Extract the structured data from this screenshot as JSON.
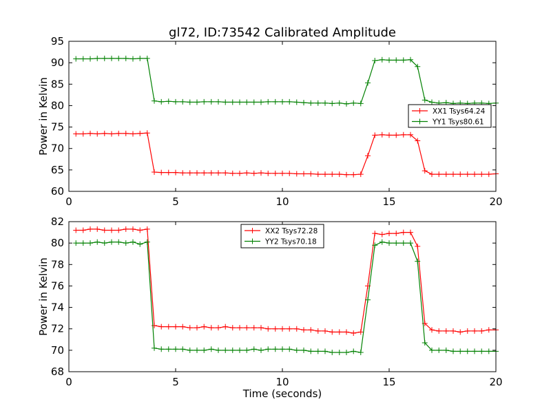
{
  "chart_data": {
    "type": "line",
    "title": "gl72, ID:73542 Calibrated Amplitude",
    "panels": [
      {
        "ylabel": "Power in Kelvin",
        "xlabel": "",
        "xlim": [
          0,
          20
        ],
        "ylim": [
          60,
          95
        ],
        "xticks": [
          0,
          5,
          10,
          15,
          20
        ],
        "yticks": [
          60,
          65,
          70,
          75,
          80,
          85,
          90,
          95
        ],
        "legend_position": "right",
        "series": [
          {
            "name": "XX1 Tsys64.24",
            "color": "#ff0000",
            "x": [
              0.33,
              0.67,
              1.0,
              1.33,
              1.67,
              2.0,
              2.33,
              2.67,
              3.0,
              3.33,
              3.67,
              4.0,
              4.33,
              4.67,
              5.0,
              5.33,
              5.67,
              6.0,
              6.33,
              6.67,
              7.0,
              7.33,
              7.67,
              8.0,
              8.33,
              8.67,
              9.0,
              9.33,
              9.67,
              10.0,
              10.33,
              10.67,
              11.0,
              11.33,
              11.67,
              12.0,
              12.33,
              12.67,
              13.0,
              13.33,
              13.67,
              14.0,
              14.33,
              14.67,
              15.0,
              15.33,
              15.67,
              16.0,
              16.33,
              16.67,
              17.0,
              17.33,
              17.67,
              18.0,
              18.33,
              18.67,
              19.0,
              19.33,
              19.67,
              20.0
            ],
            "y": [
              73.4,
              73.4,
              73.5,
              73.4,
              73.5,
              73.4,
              73.5,
              73.5,
              73.4,
              73.5,
              73.6,
              64.5,
              64.4,
              64.4,
              64.4,
              64.3,
              64.3,
              64.3,
              64.3,
              64.3,
              64.3,
              64.3,
              64.2,
              64.2,
              64.3,
              64.2,
              64.3,
              64.2,
              64.2,
              64.2,
              64.2,
              64.1,
              64.1,
              64.1,
              64.0,
              64.0,
              64.0,
              64.0,
              63.9,
              63.9,
              64.0,
              68.3,
              73.1,
              73.2,
              73.1,
              73.1,
              73.2,
              73.2,
              71.8,
              64.8,
              64.0,
              64.0,
              64.0,
              64.0,
              64.0,
              64.0,
              64.0,
              64.0,
              64.0,
              64.1
            ]
          },
          {
            "name": "YY1 Tsys80.61",
            "color": "#008000",
            "x": [
              0.33,
              0.67,
              1.0,
              1.33,
              1.67,
              2.0,
              2.33,
              2.67,
              3.0,
              3.33,
              3.67,
              4.0,
              4.33,
              4.67,
              5.0,
              5.33,
              5.67,
              6.0,
              6.33,
              6.67,
              7.0,
              7.33,
              7.67,
              8.0,
              8.33,
              8.67,
              9.0,
              9.33,
              9.67,
              10.0,
              10.33,
              10.67,
              11.0,
              11.33,
              11.67,
              12.0,
              12.33,
              12.67,
              13.0,
              13.33,
              13.67,
              14.0,
              14.33,
              14.67,
              15.0,
              15.33,
              15.67,
              16.0,
              16.33,
              16.67,
              17.0,
              17.33,
              17.67,
              18.0,
              18.33,
              18.67,
              19.0,
              19.33,
              19.67,
              20.0
            ],
            "y": [
              90.9,
              90.9,
              90.9,
              91.0,
              91.0,
              91.0,
              91.0,
              91.0,
              90.9,
              91.0,
              91.0,
              81.1,
              80.9,
              81.0,
              80.9,
              80.9,
              80.8,
              80.8,
              80.9,
              80.9,
              80.9,
              80.8,
              80.8,
              80.8,
              80.8,
              80.8,
              80.8,
              80.9,
              80.9,
              80.9,
              80.9,
              80.8,
              80.7,
              80.6,
              80.6,
              80.6,
              80.5,
              80.6,
              80.4,
              80.6,
              80.5,
              85.3,
              90.5,
              90.7,
              90.6,
              90.6,
              90.6,
              90.7,
              89.1,
              81.3,
              80.8,
              80.6,
              80.7,
              80.5,
              80.6,
              80.5,
              80.6,
              80.6,
              80.5,
              80.6
            ]
          }
        ]
      },
      {
        "ylabel": "Power in Kelvin",
        "xlabel": "Time (seconds)",
        "xlim": [
          0,
          20
        ],
        "ylim": [
          68,
          82
        ],
        "xticks": [
          0,
          5,
          10,
          15,
          20
        ],
        "yticks": [
          68,
          70,
          72,
          74,
          76,
          78,
          80,
          82
        ],
        "legend_position": "upper center",
        "series": [
          {
            "name": "XX2 Tsys72.28",
            "color": "#ff0000",
            "x": [
              0.33,
              0.67,
              1.0,
              1.33,
              1.67,
              2.0,
              2.33,
              2.67,
              3.0,
              3.33,
              3.67,
              4.0,
              4.33,
              4.67,
              5.0,
              5.33,
              5.67,
              6.0,
              6.33,
              6.67,
              7.0,
              7.33,
              7.67,
              8.0,
              8.33,
              8.67,
              9.0,
              9.33,
              9.67,
              10.0,
              10.33,
              10.67,
              11.0,
              11.33,
              11.67,
              12.0,
              12.33,
              12.67,
              13.0,
              13.33,
              13.67,
              14.0,
              14.33,
              14.67,
              15.0,
              15.33,
              15.67,
              16.0,
              16.33,
              16.67,
              17.0,
              17.33,
              17.67,
              18.0,
              18.33,
              18.67,
              19.0,
              19.33,
              19.67,
              20.0
            ],
            "y": [
              81.2,
              81.2,
              81.3,
              81.3,
              81.2,
              81.2,
              81.2,
              81.3,
              81.3,
              81.2,
              81.3,
              72.3,
              72.2,
              72.2,
              72.2,
              72.2,
              72.1,
              72.1,
              72.2,
              72.1,
              72.1,
              72.2,
              72.1,
              72.1,
              72.1,
              72.1,
              72.1,
              72.0,
              72.0,
              72.0,
              72.0,
              72.0,
              71.9,
              71.9,
              71.8,
              71.8,
              71.7,
              71.7,
              71.7,
              71.6,
              71.7,
              76.0,
              80.9,
              80.8,
              80.9,
              80.9,
              81.0,
              81.0,
              79.7,
              72.5,
              71.9,
              71.8,
              71.8,
              71.8,
              71.7,
              71.8,
              71.8,
              71.8,
              71.9,
              71.9
            ]
          },
          {
            "name": "YY2 Tsys70.18",
            "color": "#008000",
            "x": [
              0.33,
              0.67,
              1.0,
              1.33,
              1.67,
              2.0,
              2.33,
              2.67,
              3.0,
              3.33,
              3.67,
              4.0,
              4.33,
              4.67,
              5.0,
              5.33,
              5.67,
              6.0,
              6.33,
              6.67,
              7.0,
              7.33,
              7.67,
              8.0,
              8.33,
              8.67,
              9.0,
              9.33,
              9.67,
              10.0,
              10.33,
              10.67,
              11.0,
              11.33,
              11.67,
              12.0,
              12.33,
              12.67,
              13.0,
              13.33,
              13.67,
              14.0,
              14.33,
              14.67,
              15.0,
              15.33,
              15.67,
              16.0,
              16.33,
              16.67,
              17.0,
              17.33,
              17.67,
              18.0,
              18.33,
              18.67,
              19.0,
              19.33,
              19.67,
              20.0
            ],
            "y": [
              80.0,
              80.0,
              80.0,
              80.1,
              80.0,
              80.1,
              80.1,
              80.0,
              80.1,
              79.9,
              80.1,
              70.2,
              70.1,
              70.1,
              70.1,
              70.1,
              70.0,
              70.0,
              70.0,
              70.1,
              70.0,
              70.0,
              70.0,
              70.0,
              70.0,
              70.1,
              70.0,
              70.1,
              70.1,
              70.1,
              70.1,
              70.0,
              70.0,
              69.9,
              69.9,
              69.9,
              69.8,
              69.8,
              69.8,
              69.9,
              69.8,
              74.7,
              79.8,
              80.1,
              80.0,
              80.0,
              80.0,
              80.0,
              78.3,
              70.7,
              70.0,
              70.0,
              70.0,
              69.9,
              69.9,
              69.9,
              69.9,
              69.9,
              69.9,
              69.9
            ]
          }
        ]
      }
    ]
  }
}
